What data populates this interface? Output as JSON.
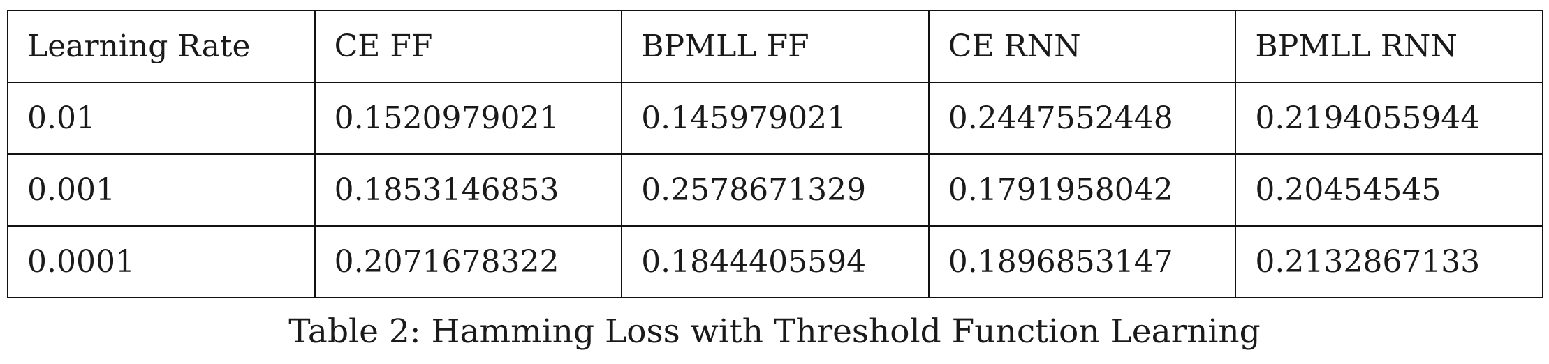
{
  "table": {
    "headers": [
      "Learning Rate",
      "CE FF",
      "BPMLL FF",
      "CE RNN",
      "BPMLL RNN"
    ],
    "rows": [
      [
        "0.01",
        "0.1520979021",
        "0.145979021",
        "0.2447552448",
        "0.2194055944"
      ],
      [
        "0.001",
        "0.1853146853",
        "0.2578671329",
        "0.1791958042",
        "0.20454545"
      ],
      [
        "0.0001",
        "0.2071678322",
        "0.1844405594",
        "0.1896853147",
        "0.2132867133"
      ]
    ]
  },
  "caption": "Table 2: Hamming Loss with Threshold Function Learning"
}
